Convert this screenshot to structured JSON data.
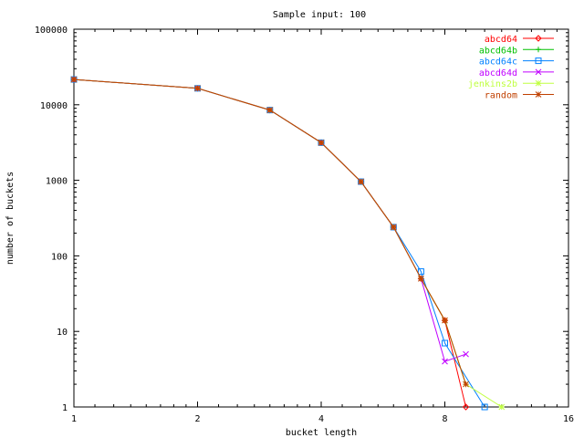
{
  "chart_data": {
    "type": "line",
    "title": "Sample input: 100",
    "xlabel": "bucket length",
    "ylabel": "number of buckets",
    "xscale": "log2",
    "yscale": "log10",
    "xlim": [
      1,
      16
    ],
    "ylim": [
      1,
      100000
    ],
    "xticks": [
      1,
      2,
      4,
      8,
      16
    ],
    "xtick_labels": [
      "1",
      "2",
      "4",
      "8",
      "16"
    ],
    "yticks": [
      1,
      10,
      100,
      1000,
      10000,
      100000
    ],
    "ytick_labels": [
      "1",
      "10",
      "100",
      "1000",
      "10000",
      "100000"
    ],
    "grid": false,
    "legend_position": "top-right",
    "series": [
      {
        "name": "abcd64",
        "color": "#ff0000",
        "marker": "diamond",
        "x": [
          1,
          2,
          3,
          4,
          5,
          6,
          7,
          8,
          9
        ],
        "y": [
          21600,
          16500,
          8500,
          3150,
          960,
          240,
          50,
          14,
          1
        ]
      },
      {
        "name": "abcd64b",
        "color": "#00c000",
        "marker": "plus",
        "x": [
          1,
          2,
          3,
          4,
          5,
          6,
          7,
          8,
          9
        ],
        "y": [
          21600,
          16500,
          8500,
          3150,
          960,
          240,
          50,
          14,
          2
        ]
      },
      {
        "name": "abcd64c",
        "color": "#0080ff",
        "marker": "square",
        "x": [
          1,
          2,
          3,
          4,
          5,
          6,
          7,
          8,
          10
        ],
        "y": [
          21600,
          16500,
          8500,
          3150,
          960,
          240,
          62,
          7,
          1
        ]
      },
      {
        "name": "abcd64d",
        "color": "#c000ff",
        "marker": "x",
        "x": [
          1,
          2,
          3,
          4,
          5,
          6,
          7,
          8,
          9
        ],
        "y": [
          21600,
          16500,
          8500,
          3150,
          960,
          240,
          50,
          4,
          5
        ]
      },
      {
        "name": "jenkins2b",
        "color": "#c0ff40",
        "marker": "asterisk",
        "x": [
          1,
          2,
          3,
          4,
          5,
          6,
          7,
          8,
          9,
          11
        ],
        "y": [
          21600,
          16500,
          8500,
          3150,
          960,
          240,
          50,
          14,
          2,
          1
        ]
      },
      {
        "name": "random",
        "color": "#c04000",
        "marker": "asterisk",
        "x": [
          1,
          2,
          3,
          4,
          5,
          6,
          7,
          8,
          9
        ],
        "y": [
          21600,
          16500,
          8500,
          3150,
          960,
          240,
          50,
          14,
          2
        ]
      }
    ]
  }
}
